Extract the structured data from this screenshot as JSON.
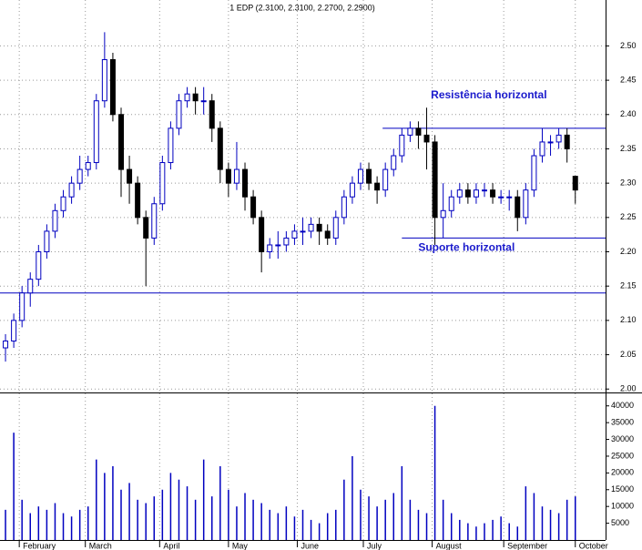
{
  "chart_data": {
    "type": "candlestick",
    "title": "1 EDP (2.3100, 2.3100, 2.2700, 2.2900)",
    "color": "#0000c0",
    "down_color": "#000000",
    "grid": true,
    "x": [
      0,
      3,
      6,
      9,
      12,
      15,
      18,
      21,
      24,
      27,
      30,
      33,
      36,
      39,
      42,
      45,
      48,
      51,
      54,
      57,
      60,
      63,
      66,
      69,
      72,
      75,
      78,
      81,
      84,
      87,
      90,
      93,
      96,
      99,
      102,
      105,
      108,
      111,
      114,
      117,
      120,
      123,
      126,
      129,
      132,
      135,
      138,
      141,
      144,
      147,
      150,
      153,
      156,
      159,
      162,
      165,
      168,
      171,
      174,
      177,
      180,
      183,
      186,
      189,
      192,
      195,
      198,
      201,
      204,
      207
    ],
    "open": [
      2.06,
      2.07,
      2.1,
      2.14,
      2.16,
      2.2,
      2.23,
      2.26,
      2.28,
      2.3,
      2.32,
      2.33,
      2.42,
      2.48,
      2.4,
      2.32,
      2.3,
      2.25,
      2.22,
      2.27,
      2.33,
      2.38,
      2.42,
      2.43,
      2.42,
      2.42,
      2.38,
      2.32,
      2.3,
      2.32,
      2.28,
      2.25,
      2.2,
      2.21,
      2.21,
      2.22,
      2.23,
      2.23,
      2.24,
      2.23,
      2.22,
      2.25,
      2.28,
      2.3,
      2.32,
      2.3,
      2.29,
      2.32,
      2.34,
      2.37,
      2.38,
      2.37,
      2.36,
      2.25,
      2.26,
      2.28,
      2.29,
      2.28,
      2.29,
      2.29,
      2.28,
      2.28,
      2.28,
      2.25,
      2.29,
      2.34,
      2.36,
      2.36,
      2.37,
      2.31
    ],
    "high": [
      2.08,
      2.11,
      2.15,
      2.17,
      2.21,
      2.24,
      2.27,
      2.29,
      2.31,
      2.34,
      2.34,
      2.43,
      2.52,
      2.49,
      2.41,
      2.34,
      2.31,
      2.26,
      2.28,
      2.34,
      2.39,
      2.43,
      2.44,
      2.44,
      2.44,
      2.43,
      2.39,
      2.33,
      2.36,
      2.33,
      2.29,
      2.26,
      2.22,
      2.23,
      2.23,
      2.24,
      2.25,
      2.25,
      2.25,
      2.24,
      2.26,
      2.29,
      2.31,
      2.33,
      2.33,
      2.31,
      2.33,
      2.35,
      2.38,
      2.39,
      2.39,
      2.41,
      2.37,
      2.3,
      2.29,
      2.3,
      2.3,
      2.3,
      2.3,
      2.3,
      2.29,
      2.29,
      2.29,
      2.3,
      2.35,
      2.38,
      2.37,
      2.38,
      2.38,
      2.31
    ],
    "low": [
      2.04,
      2.06,
      2.09,
      2.12,
      2.15,
      2.19,
      2.22,
      2.25,
      2.27,
      2.29,
      2.31,
      2.32,
      2.41,
      2.39,
      2.28,
      2.27,
      2.24,
      2.15,
      2.21,
      2.26,
      2.32,
      2.37,
      2.41,
      2.4,
      2.4,
      2.36,
      2.3,
      2.28,
      2.29,
      2.26,
      2.24,
      2.17,
      2.19,
      2.19,
      2.2,
      2.21,
      2.21,
      2.22,
      2.21,
      2.21,
      2.21,
      2.24,
      2.27,
      2.29,
      2.29,
      2.27,
      2.28,
      2.31,
      2.33,
      2.36,
      2.35,
      2.32,
      2.21,
      2.22,
      2.25,
      2.27,
      2.27,
      2.27,
      2.28,
      2.27,
      2.27,
      2.26,
      2.23,
      2.24,
      2.28,
      2.33,
      2.34,
      2.35,
      2.33,
      2.27
    ],
    "close": [
      2.07,
      2.1,
      2.14,
      2.16,
      2.2,
      2.23,
      2.26,
      2.28,
      2.3,
      2.32,
      2.33,
      2.42,
      2.48,
      2.4,
      2.32,
      2.3,
      2.25,
      2.22,
      2.27,
      2.33,
      2.38,
      2.42,
      2.43,
      2.42,
      2.42,
      2.38,
      2.32,
      2.3,
      2.32,
      2.28,
      2.25,
      2.2,
      2.21,
      2.21,
      2.22,
      2.23,
      2.23,
      2.24,
      2.23,
      2.22,
      2.25,
      2.28,
      2.3,
      2.32,
      2.3,
      2.29,
      2.32,
      2.34,
      2.37,
      2.38,
      2.37,
      2.36,
      2.25,
      2.26,
      2.28,
      2.29,
      2.28,
      2.29,
      2.29,
      2.28,
      2.28,
      2.28,
      2.25,
      2.29,
      2.34,
      2.36,
      2.36,
      2.37,
      2.35,
      2.29
    ],
    "volume": [
      9000,
      32000,
      12000,
      8000,
      10000,
      9000,
      11000,
      8000,
      7000,
      9000,
      10000,
      24000,
      20000,
      22000,
      15000,
      17000,
      12000,
      11000,
      13000,
      15000,
      20000,
      18000,
      16000,
      12000,
      24000,
      13000,
      22000,
      15000,
      10000,
      14000,
      12000,
      11000,
      9000,
      8000,
      10000,
      7000,
      9000,
      6000,
      5000,
      8000,
      9000,
      18000,
      25000,
      15000,
      13000,
      10000,
      12000,
      14000,
      22000,
      12000,
      9000,
      8000,
      40000,
      12000,
      8000,
      6000,
      5000,
      4000,
      5000,
      6000,
      7000,
      5000,
      4000,
      16000,
      14000,
      10000,
      9000,
      8000,
      12000,
      13000
    ],
    "xlim": [
      -2,
      218
    ],
    "xticks": [
      {
        "value": 5,
        "label": "February"
      },
      {
        "value": 29,
        "label": "March"
      },
      {
        "value": 56,
        "label": "April"
      },
      {
        "value": 81,
        "label": "May"
      },
      {
        "value": 106,
        "label": "June"
      },
      {
        "value": 130,
        "label": "July"
      },
      {
        "value": 155,
        "label": "August"
      },
      {
        "value": 181,
        "label": "September"
      },
      {
        "value": 207,
        "label": "October"
      }
    ],
    "ylim": [
      1.995,
      2.547
    ],
    "yticks": [
      {
        "value": 2.0,
        "label": "2.00"
      },
      2.05,
      {
        "value": 2.1,
        "label": "2.10"
      },
      2.15,
      {
        "value": 2.2,
        "label": "2.20"
      },
      2.25,
      {
        "value": 2.3,
        "label": "2.30"
      },
      2.35,
      {
        "value": 2.4,
        "label": "2.40"
      },
      2.45,
      {
        "value": 2.5,
        "label": "2.50"
      }
    ],
    "y2lim": [
      0,
      44000
    ],
    "y2ticks": [
      5000,
      10000,
      15000,
      20000,
      25000,
      30000,
      35000,
      40000
    ],
    "lines": [
      {
        "y": 2.14
      }
    ],
    "annotations": [
      {
        "text": "Resistência horizontal",
        "y": 2.38,
        "x_start": 137,
        "x_end": 218
      },
      {
        "text": "Suporte horizontal",
        "y": 2.22,
        "x_start": 144,
        "x_end": 218
      }
    ]
  }
}
